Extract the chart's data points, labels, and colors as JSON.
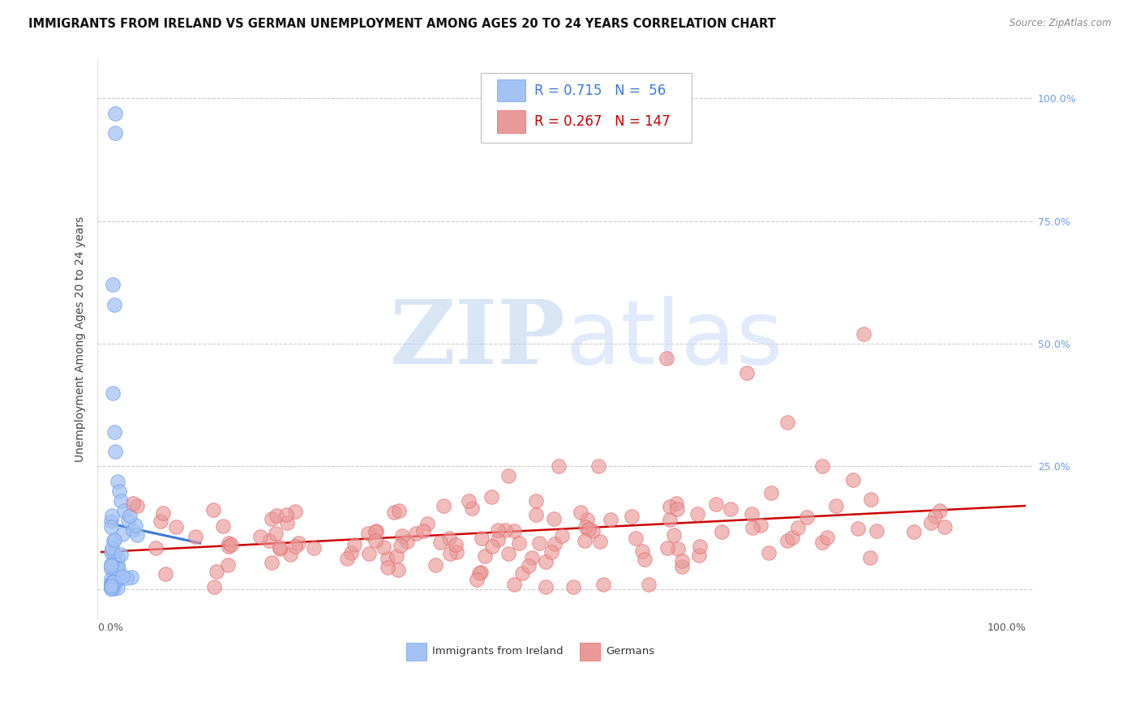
{
  "title": "IMMIGRANTS FROM IRELAND VS GERMAN UNEMPLOYMENT AMONG AGES 20 TO 24 YEARS CORRELATION CHART",
  "source": "Source: ZipAtlas.com",
  "ylabel": "Unemployment Among Ages 20 to 24 years",
  "r1": 0.715,
  "n1": 56,
  "r2": 0.267,
  "n2": 147,
  "color_blue_fill": "#a4c2f4",
  "color_blue_edge": "#6d9eeb",
  "color_blue_line": "#3c78d8",
  "color_pink_fill": "#ea9999",
  "color_pink_edge": "#e06666",
  "color_pink_line": "#cc0000",
  "color_right_axis": "#6d9eeb",
  "watermark_zip_color": "#b8cfe8",
  "watermark_atlas_color": "#c9daf8",
  "title_fontsize": 10.5,
  "source_fontsize": 8.5,
  "tick_fontsize": 9,
  "legend_fontsize": 12,
  "axis_label_fontsize": 10
}
